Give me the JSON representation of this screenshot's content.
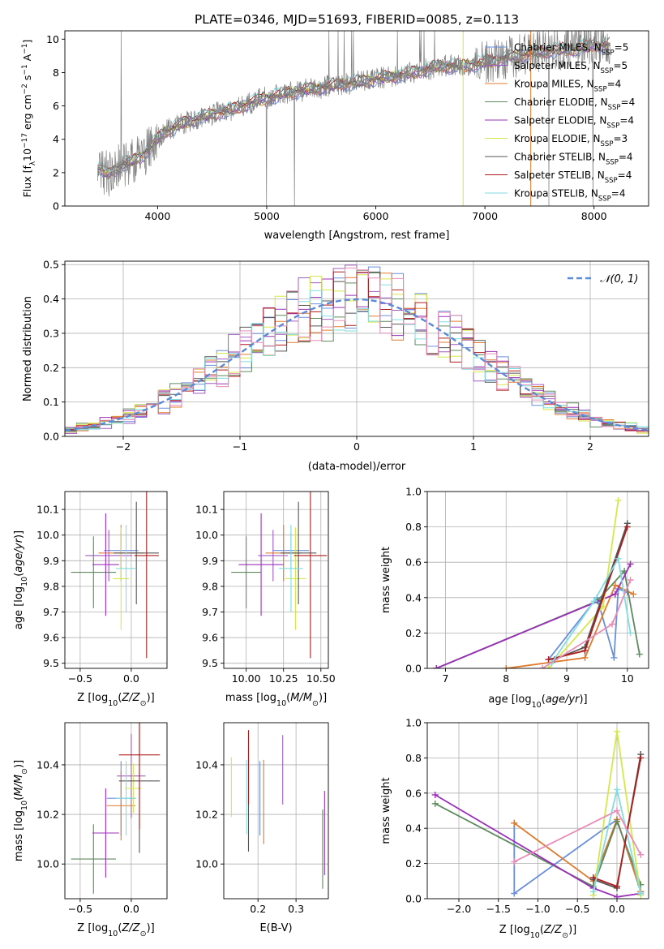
{
  "figure": {
    "title": "PLATE=0346, MJD=51693, FIBERID=0085, z=0.113"
  },
  "models": [
    {
      "label": "Chabrier MILES, N$_{SSP}$=5",
      "label_main": "Chabrier MILES, N",
      "label_sub": "SSP",
      "label_tail": "=5",
      "color": "#6a8fdc"
    },
    {
      "label": "Salpeter MILES, N$_{SSP}$=5",
      "label_main": "Salpeter MILES, N",
      "label_sub": "SSP",
      "label_tail": "=5",
      "color": "#a05cc0"
    },
    {
      "label": "Kroupa MILES, N$_{SSP}$=4",
      "label_main": "Kroupa MILES, N",
      "label_sub": "SSP",
      "label_tail": "=4",
      "color": "#e07b2e"
    },
    {
      "label": "Chabrier ELODIE, N$_{SSP}$=4",
      "label_main": "Chabrier ELODIE, N",
      "label_sub": "SSP",
      "label_tail": "=4",
      "color": "#5f8a5f"
    },
    {
      "label": "Salpeter ELODIE, N$_{SSP}$=4",
      "label_main": "Salpeter ELODIE, N",
      "label_sub": "SSP",
      "label_tail": "=4",
      "color": "#9b30b8"
    },
    {
      "label": "Kroupa ELODIE, N$_{SSP}$=3",
      "label_main": "Kroupa ELODIE, N",
      "label_sub": "SSP",
      "label_tail": "=3",
      "color": "#d4e84a"
    },
    {
      "label": "Chabrier STELIB, N$_{SSP}$=4",
      "label_main": "Chabrier STELIB, N",
      "label_sub": "SSP",
      "label_tail": "=4",
      "color": "#555555"
    },
    {
      "label": "Salpeter STELIB, N$_{SSP}$=4",
      "label_main": "Salpeter STELIB, N",
      "label_sub": "SSP",
      "label_tail": "=4",
      "color": "#b01c1c"
    },
    {
      "label": "Kroupa STELIB, N$_{SSP}$=4",
      "label_main": "Kroupa STELIB, N",
      "label_sub": "SSP",
      "label_tail": "=4",
      "color": "#80dde0"
    }
  ],
  "chart_data": [
    {
      "id": "spectrum",
      "type": "line",
      "xlabel": "wavelength [Angstrom, rest frame]",
      "ylabel": "Flux [f$_\\lambda$10$^{-17}$ erg cm$^{-2}$ s$^{-1}$ A$^{-1}$]",
      "ylabel_parts": [
        "Flux [f",
        "λ",
        "10",
        "−17",
        " erg cm",
        "−2",
        " s",
        "−1",
        " A",
        "−1",
        "]"
      ],
      "xlim": [
        3150,
        8500
      ],
      "ylim": [
        0,
        10.5
      ],
      "xticks": [
        4000,
        5000,
        6000,
        7000,
        8000
      ],
      "yticks": [
        0,
        2,
        4,
        6,
        8,
        10
      ],
      "data_color": "#808080",
      "continuum": {
        "x": [
          3450,
          3550,
          3650,
          3750,
          3850,
          3950,
          4050,
          4150,
          4300,
          4500,
          4700,
          4850,
          5000,
          5200,
          5400,
          5600,
          5800,
          6000,
          6200,
          6400,
          6600,
          6800,
          7000,
          7200,
          7400,
          7600,
          7800,
          8000,
          8150
        ],
        "y": [
          2.2,
          1.9,
          2.4,
          2.6,
          3.0,
          3.6,
          4.4,
          4.7,
          5.1,
          5.5,
          5.8,
          6.2,
          6.5,
          6.8,
          7.0,
          7.2,
          7.4,
          7.6,
          7.8,
          8.1,
          8.4,
          8.4,
          8.6,
          8.9,
          9.1,
          9.3,
          9.4,
          9.6,
          9.7
        ]
      },
      "legend_position": "upper right"
    },
    {
      "id": "residuals",
      "type": "step",
      "xlabel": "(data-model)/error",
      "ylabel": "Normed distribution",
      "xlim": [
        -2.5,
        2.5
      ],
      "ylim": [
        0,
        0.51
      ],
      "xticks": [
        -2,
        -1,
        0,
        1,
        2
      ],
      "yticks": [
        0.0,
        0.1,
        0.2,
        0.3,
        0.4,
        0.5
      ],
      "gaussian_label": "$\\mathcal{N}(0,1)$",
      "gaussian_label_text": "𝒩(0, 1)",
      "gaussian_color": "#5b8ad6",
      "legend_position": "upper right",
      "grid": true
    },
    {
      "id": "age_vs_Z",
      "type": "scatter",
      "xlabel": "Z [log$_{10}$(Z/Z$_\\odot$)]",
      "ylabel": "age  [log$_{10}$(age/yr)]",
      "xlim": [
        -0.65,
        0.35
      ],
      "ylim": [
        9.48,
        10.17
      ],
      "xticks": [
        -0.5,
        0.0
      ],
      "yticks": [
        9.5,
        9.6,
        9.7,
        9.8,
        9.9,
        10.0,
        10.1
      ],
      "grid": true,
      "points": [
        {
          "m": 0,
          "x": -0.1,
          "xerr": 0.17,
          "y": 9.94,
          "yerr": 0.07
        },
        {
          "m": 1,
          "x": -0.22,
          "xerr": 0.23,
          "y": 9.92,
          "yerr": 0.1
        },
        {
          "m": 2,
          "x": -0.1,
          "xerr": 0.22,
          "y": 9.93,
          "yerr": 0.11
        },
        {
          "m": 3,
          "x": -0.37,
          "xerr": 0.22,
          "y": 9.855,
          "yerr": 0.14
        },
        {
          "m": 4,
          "x": -0.25,
          "xerr": 0.13,
          "y": 9.885,
          "yerr": 0.2
        },
        {
          "m": 5,
          "x": -0.1,
          "xerr": 0.08,
          "y": 9.83,
          "yerr": 0.2
        },
        {
          "m": 6,
          "x": 0.05,
          "xerr": 0.22,
          "y": 9.93,
          "yerr": 0.2
        },
        {
          "m": 7,
          "x": 0.15,
          "xerr": 0.12,
          "y": 9.92,
          "yerr": 0.4
        },
        {
          "m": 8,
          "x": -0.05,
          "xerr": 0.1,
          "y": 9.87,
          "yerr": 0.17
        }
      ]
    },
    {
      "id": "age_vs_mass",
      "type": "scatter",
      "xlabel": "mass [log$_{10}$(M/M$_\\odot$)]",
      "ylabel": "",
      "xlim": [
        9.85,
        10.55
      ],
      "ylim": [
        9.48,
        10.17
      ],
      "xticks": [
        10.0,
        10.25,
        10.5
      ],
      "yticks": [
        9.5,
        9.6,
        9.7,
        9.8,
        9.9,
        10.0,
        10.1
      ],
      "grid": true,
      "points": [
        {
          "m": 0,
          "x": 10.3,
          "xerr": 0.12,
          "y": 9.94,
          "yerr": 0.07
        },
        {
          "m": 1,
          "x": 10.18,
          "xerr": 0.1,
          "y": 9.92,
          "yerr": 0.1
        },
        {
          "m": 2,
          "x": 10.25,
          "xerr": 0.12,
          "y": 9.93,
          "yerr": 0.11
        },
        {
          "m": 3,
          "x": 10.0,
          "xerr": 0.1,
          "y": 9.855,
          "yerr": 0.14
        },
        {
          "m": 4,
          "x": 10.1,
          "xerr": 0.15,
          "y": 9.885,
          "yerr": 0.2
        },
        {
          "m": 5,
          "x": 10.33,
          "xerr": 0.07,
          "y": 9.83,
          "yerr": 0.2
        },
        {
          "m": 6,
          "x": 10.35,
          "xerr": 0.12,
          "y": 9.93,
          "yerr": 0.2
        },
        {
          "m": 7,
          "x": 10.43,
          "xerr": 0.11,
          "y": 9.92,
          "yerr": 0.4
        },
        {
          "m": 8,
          "x": 10.3,
          "xerr": 0.08,
          "y": 9.87,
          "yerr": 0.17
        }
      ]
    },
    {
      "id": "weight_vs_age",
      "type": "line",
      "xlabel": "age  [log$_{10}$(age/yr)]",
      "ylabel": "mass weight",
      "xlim": [
        6.7,
        10.35
      ],
      "ylim": [
        0,
        1.0
      ],
      "xticks": [
        7,
        8,
        9,
        10
      ],
      "yticks": [
        0.0,
        0.2,
        0.4,
        0.6,
        0.8,
        1.0
      ],
      "grid": true,
      "series": [
        {
          "m": 0,
          "x": [
            8.7,
            9.5,
            9.78,
            9.85,
            10.0
          ],
          "y": [
            0.05,
            0.4,
            0.06,
            0.45,
            0.43
          ]
        },
        {
          "m": 2,
          "x": [
            8.0,
            9.3,
            9.8,
            10.1
          ],
          "y": [
            0.0,
            0.06,
            0.47,
            0.42
          ]
        },
        {
          "m": 3,
          "x": [
            6.85,
            9.5,
            9.95,
            10.2
          ],
          "y": [
            0.0,
            0.38,
            0.55,
            0.08
          ]
        },
        {
          "m": 4,
          "x": [
            6.85,
            9.8,
            10.05
          ],
          "y": [
            0.0,
            0.42,
            0.59
          ]
        },
        {
          "m": 5,
          "x": [
            8.7,
            9.6,
            9.85
          ],
          "y": [
            0.0,
            0.35,
            0.95
          ]
        },
        {
          "m": 6,
          "x": [
            8.8,
            9.3,
            10.0
          ],
          "y": [
            0.05,
            0.12,
            0.82
          ]
        },
        {
          "m": 7,
          "x": [
            8.7,
            9.3,
            10.0
          ],
          "y": [
            0.05,
            0.1,
            0.8
          ]
        },
        {
          "m": 8,
          "x": [
            8.75,
            9.45,
            9.85,
            10.05
          ],
          "y": [
            0.03,
            0.38,
            0.62,
            0.2
          ]
        },
        {
          "m": 9,
          "x": [
            8.6,
            9.75,
            10.05
          ],
          "y": [
            0.0,
            0.25,
            0.5
          ]
        }
      ]
    },
    {
      "id": "mass_vs_Z",
      "type": "scatter",
      "xlabel": "Z [log$_{10}$(Z/Z$_\\odot$)]",
      "ylabel": "mass [log$_{10}$(M/M$_\\odot$)]",
      "xlim": [
        -0.65,
        0.35
      ],
      "ylim": [
        9.86,
        10.57
      ],
      "xticks": [
        -0.5,
        0.0
      ],
      "yticks": [
        10.0,
        10.2,
        10.4
      ],
      "grid": true,
      "points": [
        {
          "m": 0,
          "x": -0.1,
          "xerr": 0.14,
          "y": 10.265,
          "yerr": 0.15
        },
        {
          "m": 1,
          "x": 0.0,
          "xerr": 0.14,
          "y": 10.355,
          "yerr": 0.17
        },
        {
          "m": 2,
          "x": -0.1,
          "xerr": 0.14,
          "y": 10.235,
          "yerr": 0.14
        },
        {
          "m": 3,
          "x": -0.37,
          "xerr": 0.22,
          "y": 10.02,
          "yerr": 0.14
        },
        {
          "m": 4,
          "x": -0.25,
          "xerr": 0.13,
          "y": 10.125,
          "yerr": 0.18
        },
        {
          "m": 5,
          "x": 0.02,
          "xerr": 0.08,
          "y": 10.305,
          "yerr": 0.1
        },
        {
          "m": 6,
          "x": 0.08,
          "xerr": 0.2,
          "y": 10.335,
          "yerr": 0.29
        },
        {
          "m": 7,
          "x": 0.08,
          "xerr": 0.2,
          "y": 10.44,
          "yerr": 0.3
        },
        {
          "m": 8,
          "x": -0.05,
          "xerr": 0.1,
          "y": 10.265,
          "yerr": 0.15
        }
      ]
    },
    {
      "id": "mass_vs_EBV",
      "type": "scatter",
      "xlabel": "E(B-V)",
      "ylabel": "",
      "xlim": [
        0.11,
        0.385
      ],
      "ylim": [
        9.86,
        10.57
      ],
      "xticks": [
        0.2,
        0.3
      ],
      "yticks": [
        10.0,
        10.2,
        10.4
      ],
      "grid": true,
      "points": [
        {
          "m": 0,
          "x": 0.205,
          "y": 10.265,
          "yerr": 0.15
        },
        {
          "m": 1,
          "x": 0.265,
          "y": 10.38,
          "yerr": 0.14
        },
        {
          "m": 2,
          "x": 0.215,
          "y": 10.25,
          "yerr": 0.17
        },
        {
          "m": 3,
          "x": 0.37,
          "y": 10.06,
          "yerr": 0.16
        },
        {
          "m": 4,
          "x": 0.375,
          "y": 10.125,
          "yerr": 0.17
        },
        {
          "m": 5,
          "x": 0.13,
          "y": 10.31,
          "yerr": 0.12
        },
        {
          "m": 6,
          "x": 0.175,
          "y": 10.26,
          "yerr": 0.21
        },
        {
          "m": 7,
          "x": 0.175,
          "y": 10.39,
          "yerr": 0.15
        },
        {
          "m": 8,
          "x": 0.17,
          "y": 10.27,
          "yerr": 0.15
        }
      ]
    },
    {
      "id": "weight_vs_Z",
      "type": "line",
      "xlabel": "Z [log$_{10}$(Z/Z$_\\odot$)]",
      "ylabel": "mass weight",
      "xlim": [
        -2.4,
        0.4
      ],
      "ylim": [
        0,
        1.0
      ],
      "xticks": [
        -2.0,
        -1.5,
        -1.0,
        -0.5,
        0.0
      ],
      "yticks": [
        0.0,
        0.2,
        0.4,
        0.6,
        0.8,
        1.0
      ],
      "grid": true,
      "series": [
        {
          "m": 0,
          "x": [
            -1.3,
            -1.3,
            0.0,
            0.3
          ],
          "y": [
            0.43,
            0.03,
            0.45,
            0.04
          ]
        },
        {
          "m": 2,
          "x": [
            -1.3,
            -0.3,
            0.0,
            0.3
          ],
          "y": [
            0.43,
            0.1,
            0.45,
            0.04
          ]
        },
        {
          "m": 3,
          "x": [
            -2.3,
            -0.3,
            0.0,
            0.3
          ],
          "y": [
            0.54,
            0.07,
            0.44,
            0.08
          ]
        },
        {
          "m": 4,
          "x": [
            -2.3,
            -0.3,
            0.0,
            0.3
          ],
          "y": [
            0.59,
            0.06,
            0.01,
            0.03
          ]
        },
        {
          "m": 5,
          "x": [
            -0.3,
            0.0,
            0.3
          ],
          "y": [
            0.02,
            0.95,
            0.02
          ]
        },
        {
          "m": 6,
          "x": [
            -0.3,
            0.0,
            0.3
          ],
          "y": [
            0.11,
            0.06,
            0.82
          ]
        },
        {
          "m": 7,
          "x": [
            -0.3,
            0.0,
            0.3
          ],
          "y": [
            0.12,
            0.07,
            0.8
          ]
        },
        {
          "m": 8,
          "x": [
            -0.3,
            0.0,
            0.3
          ],
          "y": [
            0.04,
            0.62,
            0.03
          ]
        },
        {
          "m": 9,
          "x": [
            -1.3,
            0.0,
            0.3
          ],
          "y": [
            0.21,
            0.5,
            0.25
          ]
        }
      ]
    }
  ],
  "extra_colors": {
    "pink": "#e88cb8"
  }
}
